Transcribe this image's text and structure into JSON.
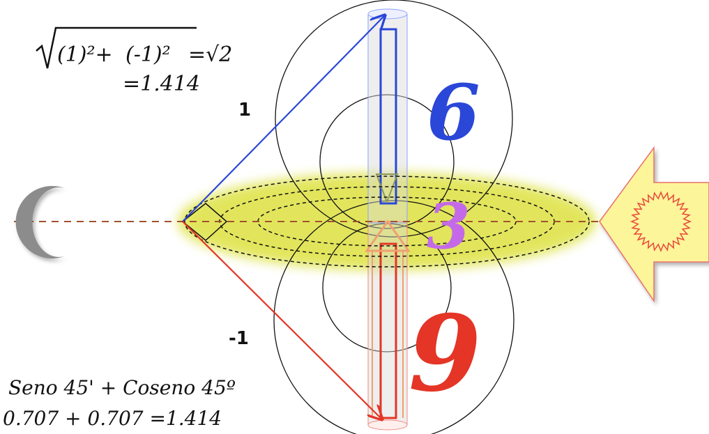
{
  "formula": {
    "radicand_a": "(1)²+",
    "radicand_b": "(-1)²",
    "equals_root": "=√2",
    "equals_value": "=1.414"
  },
  "axis_labels": {
    "upper": "1",
    "lower": "-1"
  },
  "numbers": {
    "top": "6",
    "middle": "3",
    "bottom": "9"
  },
  "trig": {
    "line1": "Seno 45' + Coseno 45º",
    "line2": "0.707 + 0.707 =1.414"
  },
  "colors": {
    "blue": "#2a47d8",
    "red": "#e43526",
    "purple": "#c46ae8",
    "axis": "#a0522d",
    "glow": "#d9e04a",
    "sun_arrow": "#fdf59a",
    "moon": "#8c8c8c"
  },
  "icons": {
    "moon": "crescent-moon-icon",
    "sun": "sun-icon"
  }
}
